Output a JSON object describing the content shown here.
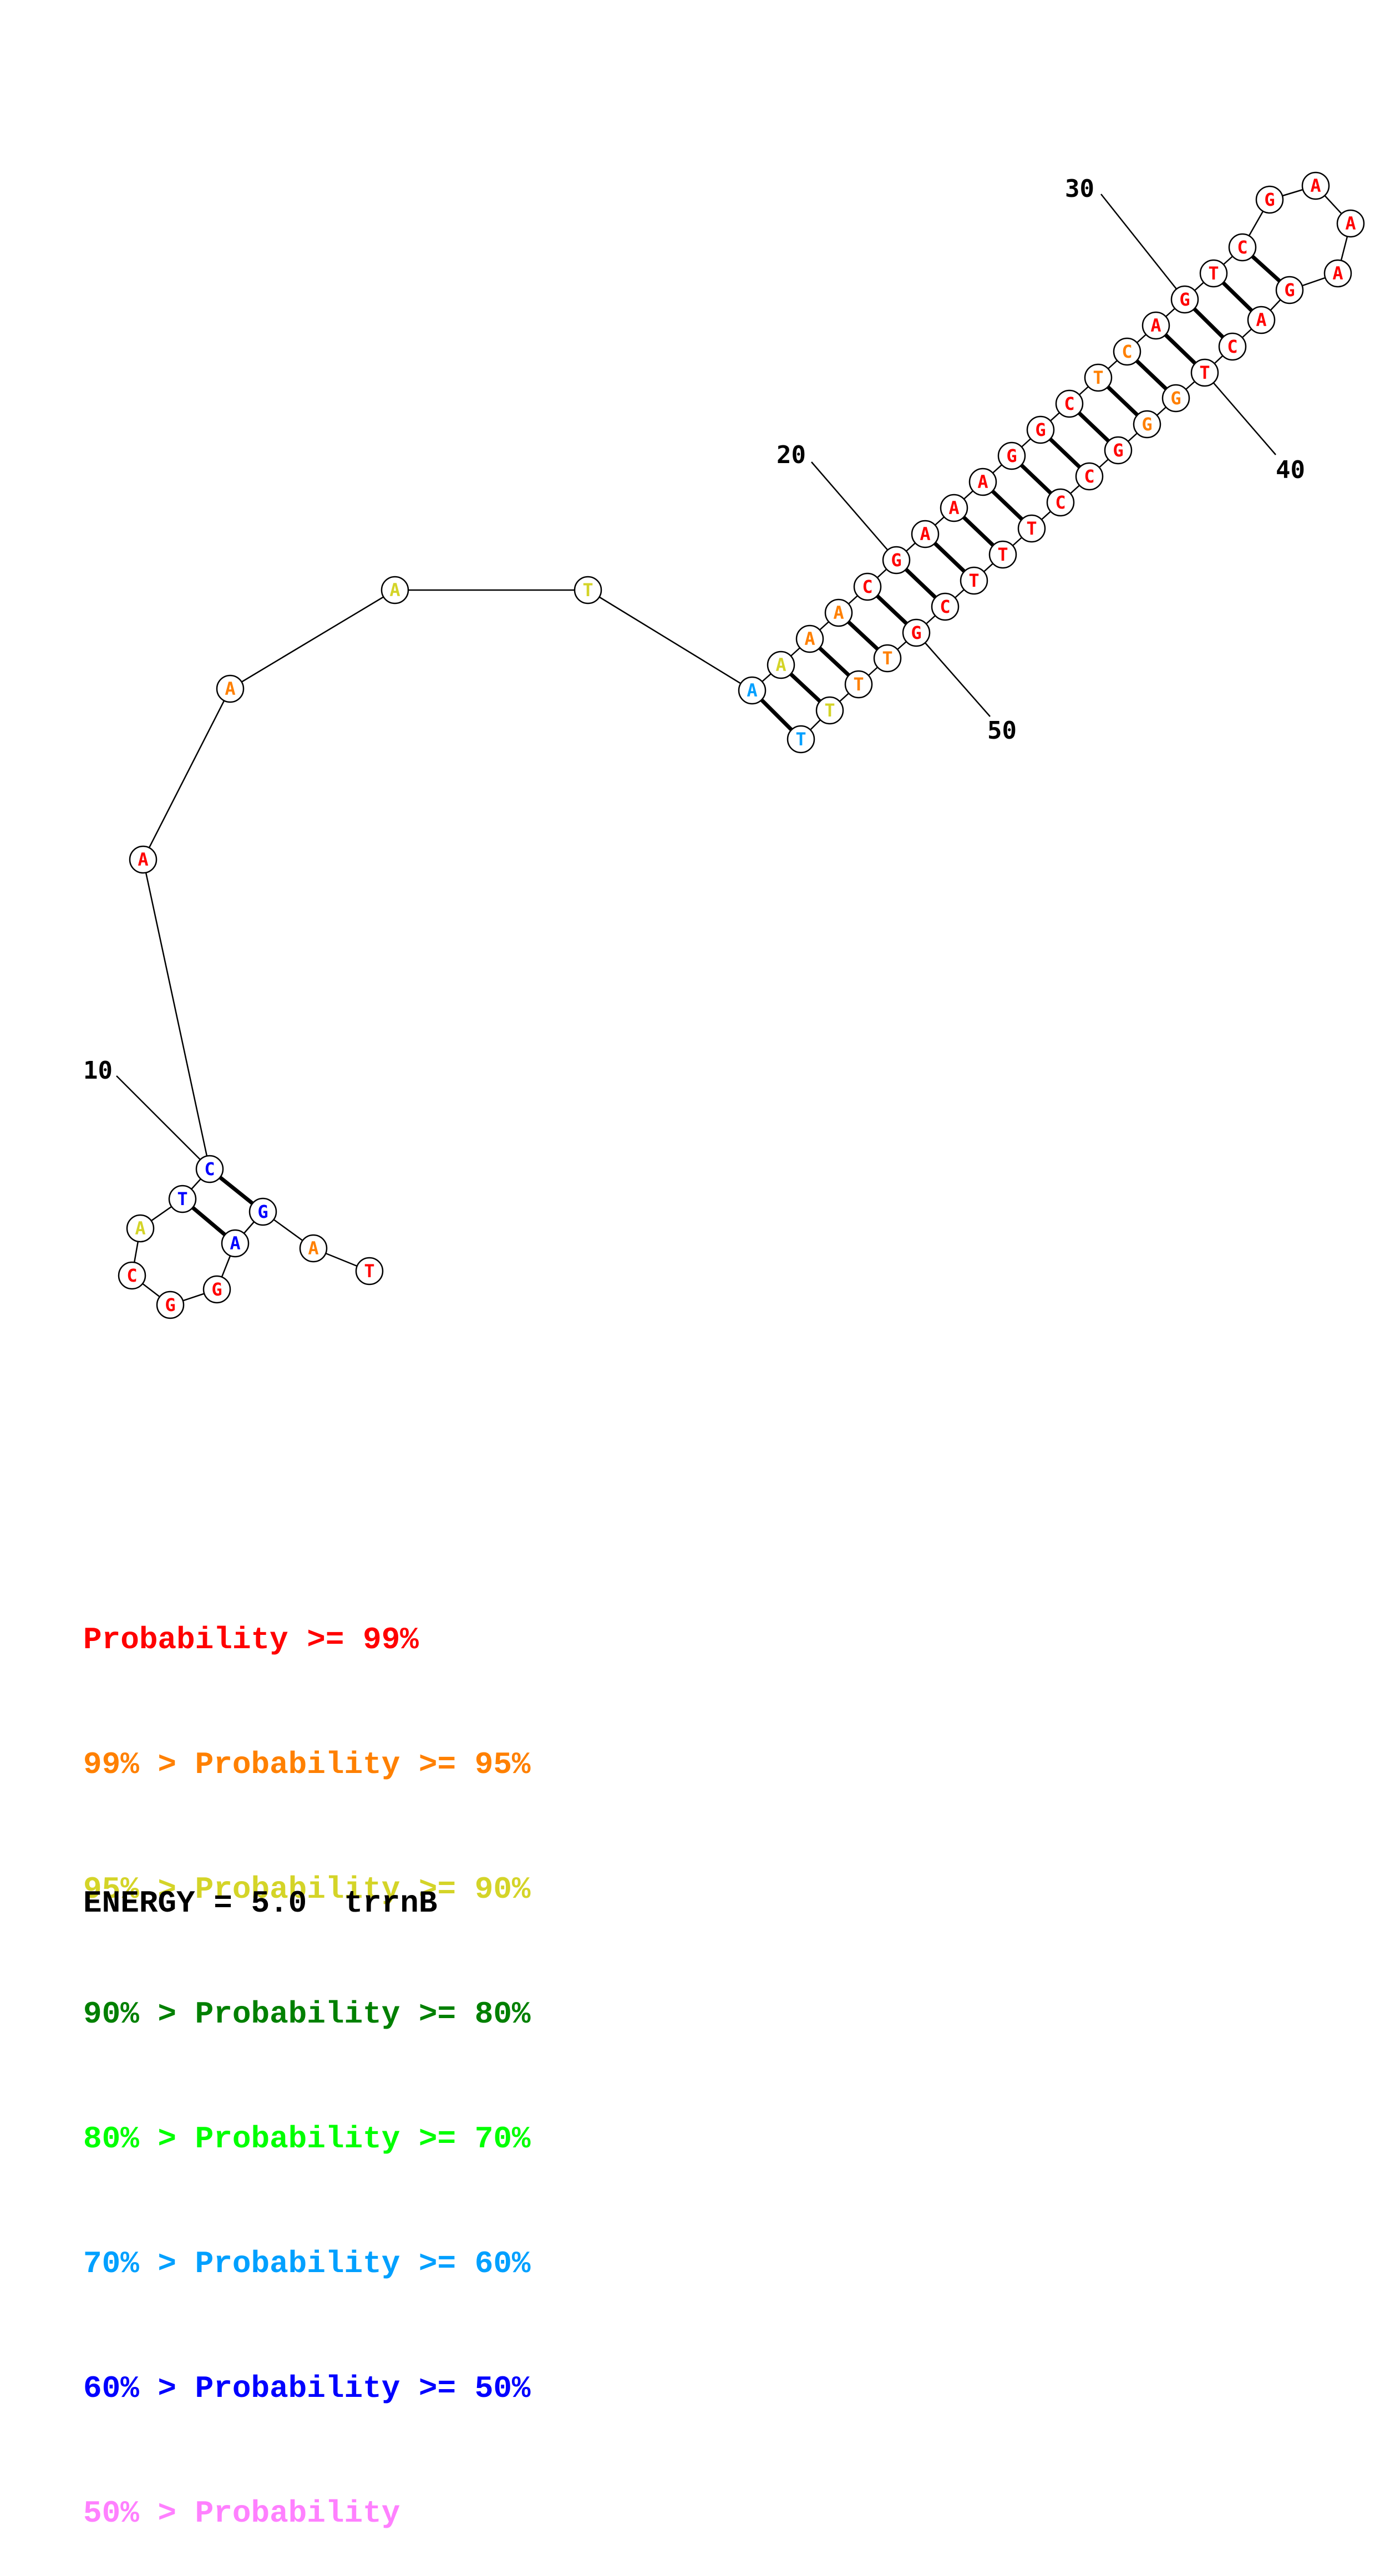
{
  "palette": {
    "red": "#ff0000",
    "orange": "#ff8000",
    "yellow": "#d4d428",
    "darkgreen": "#008000",
    "green": "#00ff00",
    "cyan": "#00a0ff",
    "blue": "#0000ff",
    "pink": "#ff80ff",
    "black": "#000000"
  },
  "sequence": [
    {
      "n": 1,
      "base": "T",
      "tier": "red"
    },
    {
      "n": 2,
      "base": "A",
      "tier": "orange"
    },
    {
      "n": 3,
      "base": "G",
      "tier": "blue"
    },
    {
      "n": 4,
      "base": "A",
      "tier": "blue"
    },
    {
      "n": 5,
      "base": "G",
      "tier": "red"
    },
    {
      "n": 6,
      "base": "G",
      "tier": "red"
    },
    {
      "n": 7,
      "base": "C",
      "tier": "red"
    },
    {
      "n": 8,
      "base": "A",
      "tier": "yellow"
    },
    {
      "n": 9,
      "base": "T",
      "tier": "blue"
    },
    {
      "n": 10,
      "base": "C",
      "tier": "blue"
    },
    {
      "n": 11,
      "base": "A",
      "tier": "red"
    },
    {
      "n": 12,
      "base": "A",
      "tier": "orange"
    },
    {
      "n": 13,
      "base": "A",
      "tier": "yellow"
    },
    {
      "n": 14,
      "base": "T",
      "tier": "yellow"
    },
    {
      "n": 15,
      "base": "A",
      "tier": "cyan"
    },
    {
      "n": 16,
      "base": "A",
      "tier": "yellow"
    },
    {
      "n": 17,
      "base": "A",
      "tier": "orange"
    },
    {
      "n": 18,
      "base": "A",
      "tier": "orange"
    },
    {
      "n": 19,
      "base": "C",
      "tier": "red"
    },
    {
      "n": 20,
      "base": "G",
      "tier": "red"
    },
    {
      "n": 21,
      "base": "A",
      "tier": "red"
    },
    {
      "n": 22,
      "base": "A",
      "tier": "red"
    },
    {
      "n": 23,
      "base": "A",
      "tier": "red"
    },
    {
      "n": 24,
      "base": "G",
      "tier": "red"
    },
    {
      "n": 25,
      "base": "G",
      "tier": "red"
    },
    {
      "n": 26,
      "base": "C",
      "tier": "red"
    },
    {
      "n": 27,
      "base": "T",
      "tier": "orange"
    },
    {
      "n": 28,
      "base": "C",
      "tier": "orange"
    },
    {
      "n": 29,
      "base": "A",
      "tier": "red"
    },
    {
      "n": 30,
      "base": "G",
      "tier": "red"
    },
    {
      "n": 31,
      "base": "T",
      "tier": "red"
    },
    {
      "n": 32,
      "base": "C",
      "tier": "red"
    },
    {
      "n": 33,
      "base": "G",
      "tier": "red"
    },
    {
      "n": 34,
      "base": "A",
      "tier": "red"
    },
    {
      "n": 35,
      "base": "A",
      "tier": "red"
    },
    {
      "n": 36,
      "base": "A",
      "tier": "red"
    },
    {
      "n": 37,
      "base": "G",
      "tier": "red"
    },
    {
      "n": 38,
      "base": "A",
      "tier": "red"
    },
    {
      "n": 39,
      "base": "C",
      "tier": "red"
    },
    {
      "n": 40,
      "base": "T",
      "tier": "red"
    },
    {
      "n": 41,
      "base": "G",
      "tier": "orange"
    },
    {
      "n": 42,
      "base": "G",
      "tier": "orange"
    },
    {
      "n": 43,
      "base": "G",
      "tier": "red"
    },
    {
      "n": 44,
      "base": "C",
      "tier": "red"
    },
    {
      "n": 45,
      "base": "C",
      "tier": "red"
    },
    {
      "n": 46,
      "base": "T",
      "tier": "red"
    },
    {
      "n": 47,
      "base": "T",
      "tier": "red"
    },
    {
      "n": 48,
      "base": "T",
      "tier": "red"
    },
    {
      "n": 49,
      "base": "C",
      "tier": "red"
    },
    {
      "n": 50,
      "base": "G",
      "tier": "red"
    },
    {
      "n": 51,
      "base": "T",
      "tier": "orange"
    },
    {
      "n": 52,
      "base": "T",
      "tier": "orange"
    },
    {
      "n": 53,
      "base": "T",
      "tier": "yellow"
    },
    {
      "n": 54,
      "base": "T",
      "tier": "cyan"
    }
  ],
  "pairs": [
    [
      3,
      10
    ],
    [
      4,
      9
    ],
    [
      15,
      54
    ],
    [
      16,
      53
    ],
    [
      17,
      52
    ],
    [
      18,
      51
    ],
    [
      19,
      50
    ],
    [
      20,
      49
    ],
    [
      21,
      48
    ],
    [
      22,
      47
    ],
    [
      23,
      46
    ],
    [
      24,
      45
    ],
    [
      25,
      44
    ],
    [
      26,
      43
    ],
    [
      27,
      42
    ],
    [
      28,
      41
    ],
    [
      29,
      40
    ],
    [
      30,
      39
    ],
    [
      31,
      38
    ],
    [
      32,
      37
    ]
  ],
  "position_labels": [
    {
      "text": "10",
      "base_n": 10
    },
    {
      "text": "20",
      "base_n": 20
    },
    {
      "text": "30",
      "base_n": 30
    },
    {
      "text": "40",
      "base_n": 40
    },
    {
      "text": "50",
      "base_n": 50
    }
  ],
  "legend": [
    {
      "prefix": "",
      "label": "Probability >= 99%",
      "color": "#ff0000"
    },
    {
      "prefix": "99% > ",
      "label": "Probability >= 95%",
      "color": "#ff8000"
    },
    {
      "prefix": "95% > ",
      "label": "Probability >= 90%",
      "color": "#d4d428"
    },
    {
      "prefix": "90% > ",
      "label": "Probability >= 80%",
      "color": "#008000"
    },
    {
      "prefix": "80% > ",
      "label": "Probability >= 70%",
      "color": "#00ff00"
    },
    {
      "prefix": "70% > ",
      "label": "Probability >= 60%",
      "color": "#00a0ff"
    },
    {
      "prefix": "60% > ",
      "label": "Probability >= 50%",
      "color": "#0000ff"
    },
    {
      "prefix": "50% > ",
      "label": "Probability",
      "color": "#ff80ff"
    }
  ],
  "footer": {
    "energy": "ENERGY = 5.0  trrnB"
  }
}
